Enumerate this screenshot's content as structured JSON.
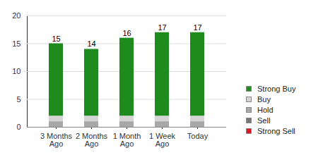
{
  "chart_data": {
    "type": "bar",
    "stacked": true,
    "categories": [
      "3 Months Ago",
      "2 Months Ago",
      "1 Month Ago",
      "1 Week Ago",
      "Today"
    ],
    "series": [
      {
        "name": "Strong Buy",
        "color": "#1e8b1e",
        "values": [
          13,
          12,
          14,
          15,
          15
        ]
      },
      {
        "name": "Buy",
        "color": "#d4d4d4",
        "values": [
          1,
          1,
          1,
          1,
          1
        ]
      },
      {
        "name": "Hold",
        "color": "#a8a8a8",
        "values": [
          1,
          1,
          1,
          1,
          1
        ]
      },
      {
        "name": "Sell",
        "color": "#777777",
        "values": [
          0,
          0,
          0,
          0,
          0
        ]
      },
      {
        "name": "Strong Sell",
        "color": "#e0141e",
        "values": [
          0,
          0,
          0,
          0,
          0
        ]
      }
    ],
    "totals": [
      15,
      14,
      16,
      17,
      17
    ],
    "ylim": [
      0,
      20
    ],
    "yticks": [
      0,
      5,
      10,
      15,
      20
    ],
    "grid": true,
    "legend": "right"
  }
}
